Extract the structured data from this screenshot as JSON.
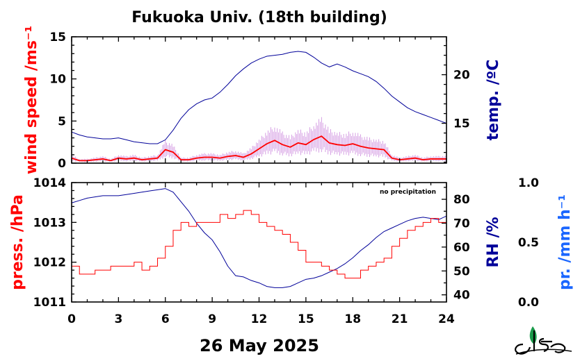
{
  "colors": {
    "wind": "#ff0000",
    "wind_raw": "#cc88dd",
    "temp": "#000099",
    "pressure": "#ff0000",
    "rh": "#000099",
    "precip": "#1a66ff"
  },
  "logo_icon": "ies-logo-icon",
  "chart_data": [
    {
      "type": "line",
      "title": "Fukuoka Univ. (18th building)",
      "xlabel": "26 May 2025",
      "xlim": [
        0,
        24
      ],
      "x_ticks": [
        "0",
        "3",
        "6",
        "9",
        "12",
        "15",
        "18",
        "21",
        "24"
      ],
      "ylabel": "wind speed /ms⁻¹",
      "ylim": [
        0,
        15
      ],
      "y_ticks": [
        "0",
        "5",
        "10",
        "15"
      ],
      "y2label": "temp. /ºC",
      "y2lim": [
        10.9,
        23.9
      ],
      "y2_ticks": [
        "15",
        "20"
      ],
      "series": [
        {
          "axis": "y",
          "x": [
            0,
            0.5,
            1,
            1.5,
            2,
            2.5,
            3,
            3.5,
            4,
            4.5,
            5,
            5.5,
            6,
            6.5,
            7,
            7.5,
            8,
            8.5,
            9,
            9.5,
            10,
            10.5,
            11,
            11.5,
            12,
            12.5,
            13,
            13.5,
            14,
            14.5,
            15,
            15.5,
            16,
            16.5,
            17,
            17.5,
            18,
            18.5,
            19,
            19.5,
            20,
            20.5,
            21,
            21.5,
            22,
            22.5,
            23,
            23.5,
            24
          ],
          "values": [
            0.6,
            0.3,
            0.3,
            0.4,
            0.5,
            0.3,
            0.6,
            0.5,
            0.6,
            0.4,
            0.5,
            0.6,
            1.6,
            1.3,
            0.4,
            0.4,
            0.6,
            0.7,
            0.7,
            0.6,
            0.8,
            0.9,
            0.7,
            1.1,
            1.7,
            2.3,
            2.7,
            2.2,
            1.9,
            2.4,
            2.2,
            2.8,
            3.2,
            2.4,
            2.2,
            2.1,
            2.3,
            2.0,
            1.8,
            1.7,
            1.6,
            0.6,
            0.4,
            0.5,
            0.6,
            0.4,
            0.5,
            0.5,
            0.5
          ]
        },
        {
          "axis": "y2",
          "x": [
            0,
            0.5,
            1,
            1.5,
            2,
            2.5,
            3,
            3.5,
            4,
            4.5,
            5,
            5.5,
            6,
            6.5,
            7,
            7.5,
            8,
            8.5,
            9,
            9.5,
            10,
            10.5,
            11,
            11.5,
            12,
            12.5,
            13,
            13.5,
            14,
            14.5,
            15,
            15.5,
            16,
            16.5,
            17,
            17.5,
            18,
            18.5,
            19,
            19.5,
            20,
            20.5,
            21,
            21.5,
            22,
            22.5,
            23,
            23.5,
            24
          ],
          "values": [
            14.1,
            13.8,
            13.6,
            13.5,
            13.4,
            13.4,
            13.5,
            13.3,
            13.1,
            13.0,
            12.9,
            12.9,
            13.3,
            14.3,
            15.5,
            16.4,
            17.0,
            17.4,
            17.6,
            18.2,
            19.0,
            19.9,
            20.6,
            21.2,
            21.6,
            21.9,
            22.0,
            22.1,
            22.3,
            22.4,
            22.3,
            21.8,
            21.2,
            20.8,
            21.1,
            20.8,
            20.4,
            20.1,
            19.8,
            19.3,
            18.6,
            17.8,
            17.2,
            16.6,
            16.2,
            15.9,
            15.6,
            15.3,
            15.0
          ]
        }
      ]
    },
    {
      "type": "line",
      "note": "no precipitation",
      "xlim": [
        0,
        24
      ],
      "ylabel": "press. /hPa",
      "ylim": [
        1011,
        1014
      ],
      "y_ticks": [
        "1011",
        "1012",
        "1013",
        "1014"
      ],
      "y2label": "RH /%",
      "y2lim": [
        37,
        87
      ],
      "y2_ticks": [
        "40",
        "50",
        "60",
        "70",
        "80"
      ],
      "y3label": "pr. /mm h⁻¹",
      "y3lim": [
        0,
        1
      ],
      "y3_ticks": [
        "0.0",
        "0.5",
        "1.0"
      ],
      "precip_values": [],
      "series": [
        {
          "axis": "y",
          "x": [
            0,
            0.5,
            1,
            1.5,
            2,
            2.5,
            3,
            3.5,
            4,
            4.5,
            5,
            5.5,
            6,
            6.5,
            7,
            7.5,
            8,
            8.5,
            9,
            9.5,
            10,
            10.5,
            11,
            11.5,
            12,
            12.5,
            13,
            13.5,
            14,
            14.5,
            15,
            15.5,
            16,
            16.5,
            17,
            17.5,
            18,
            18.5,
            19,
            19.5,
            20,
            20.5,
            21,
            21.5,
            22,
            22.5,
            23,
            23.5,
            24
          ],
          "values": [
            1011.9,
            1011.7,
            1011.7,
            1011.8,
            1011.8,
            1011.9,
            1011.9,
            1011.9,
            1012.0,
            1011.8,
            1011.9,
            1012.1,
            1012.4,
            1012.8,
            1013.0,
            1012.9,
            1013.0,
            1013.0,
            1013.0,
            1013.2,
            1013.1,
            1013.2,
            1013.3,
            1013.2,
            1013.0,
            1012.9,
            1012.8,
            1012.7,
            1012.5,
            1012.3,
            1012.0,
            1012.0,
            1011.9,
            1011.8,
            1011.7,
            1011.6,
            1011.6,
            1011.8,
            1011.9,
            1012.0,
            1012.1,
            1012.4,
            1012.6,
            1012.8,
            1012.9,
            1013.0,
            1013.1,
            1013.0,
            1013.0
          ]
        },
        {
          "axis": "y2",
          "x": [
            0,
            0.5,
            1,
            1.5,
            2,
            2.5,
            3,
            3.5,
            4,
            4.5,
            5,
            5.5,
            6,
            6.5,
            7,
            7.5,
            8,
            8.5,
            9,
            9.5,
            10,
            10.5,
            11,
            11.5,
            12,
            12.5,
            13,
            13.5,
            14,
            14.5,
            15,
            15.5,
            16,
            16.5,
            17,
            17.5,
            18,
            18.5,
            19,
            19.5,
            20,
            20.5,
            21,
            21.5,
            22,
            22.5,
            23,
            23.5,
            24
          ],
          "values": [
            78.5,
            79.5,
            80.5,
            81.0,
            81.5,
            81.5,
            81.5,
            82.0,
            82.5,
            83.0,
            83.5,
            84.0,
            84.5,
            83.0,
            79.0,
            75.0,
            70.0,
            66.0,
            63.0,
            58.0,
            52.0,
            48.0,
            47.5,
            46.0,
            45.0,
            43.5,
            43.0,
            43.0,
            43.5,
            45.0,
            46.5,
            47.0,
            48.0,
            49.5,
            51.0,
            53.0,
            55.5,
            58.5,
            61.0,
            64.0,
            66.5,
            68.0,
            69.5,
            71.0,
            72.0,
            72.5,
            72.0,
            71.5,
            73.0
          ]
        }
      ]
    }
  ]
}
